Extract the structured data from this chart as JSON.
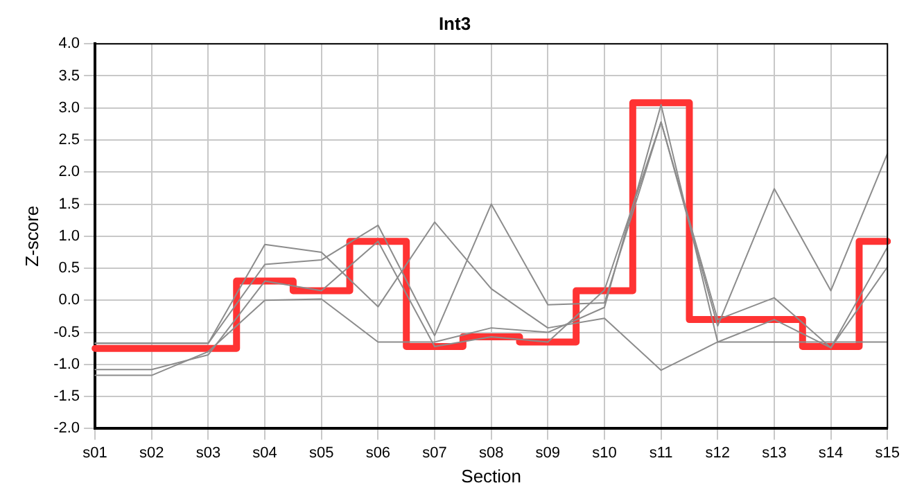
{
  "chart_data": {
    "type": "line",
    "title": "Int3",
    "xlabel": "Section",
    "ylabel": "Z-score",
    "categories": [
      "s01",
      "s02",
      "s03",
      "s04",
      "s05",
      "s06",
      "s07",
      "s08",
      "s09",
      "s10",
      "s11",
      "s12",
      "s13",
      "s14",
      "s15"
    ],
    "series": [
      {
        "color": "#8c8c8c",
        "values": [
          -0.67,
          -0.67,
          -0.67,
          0.87,
          0.75,
          -0.1,
          1.22,
          0.18,
          -0.43,
          -0.28,
          -1.09,
          -0.65,
          -0.65,
          -0.65,
          -0.65
        ]
      },
      {
        "color": "#8c8c8c",
        "values": [
          -0.67,
          -0.67,
          -0.67,
          0.56,
          0.63,
          1.17,
          -0.55,
          1.5,
          -0.07,
          -0.04,
          2.78,
          -0.4,
          1.74,
          0.15,
          2.29
        ]
      },
      {
        "color": "#8c8c8c",
        "values": [
          -1.17,
          -1.17,
          -0.8,
          0.0,
          0.02,
          -0.65,
          -0.65,
          -0.43,
          -0.5,
          -0.11,
          3.05,
          -0.65,
          -0.3,
          -0.74,
          0.52
        ]
      },
      {
        "color": "#8c8c8c",
        "values": [
          -1.08,
          -1.08,
          -0.85,
          0.3,
          0.15,
          0.92,
          -0.72,
          -0.57,
          -0.65,
          0.16,
          2.78,
          -0.3,
          0.04,
          -0.74,
          0.83
        ]
      },
      {
        "type": "step",
        "color": "#ff3333",
        "values": [
          -0.75,
          -0.75,
          -0.75,
          0.3,
          0.15,
          0.92,
          -0.72,
          -0.57,
          -0.65,
          0.15,
          3.08,
          -0.3,
          -0.3,
          -0.72,
          0.92
        ]
      }
    ],
    "ylim": [
      -2,
      4
    ],
    "yticks": [
      {
        "value": -2,
        "label": "-2.0"
      },
      -1.5,
      {
        "value": -1,
        "label": "-1.0"
      },
      -0.5,
      {
        "value": 0,
        "label": "0.0"
      },
      0.5,
      {
        "value": 1,
        "label": "1.0"
      },
      1.5,
      {
        "value": 2,
        "label": "2.0"
      },
      2.5,
      {
        "value": 3,
        "label": "3.0"
      },
      3.5,
      {
        "value": 4,
        "label": "4.0"
      }
    ],
    "grid": true,
    "legend": false,
    "marker": "none",
    "line_style": "solid"
  }
}
